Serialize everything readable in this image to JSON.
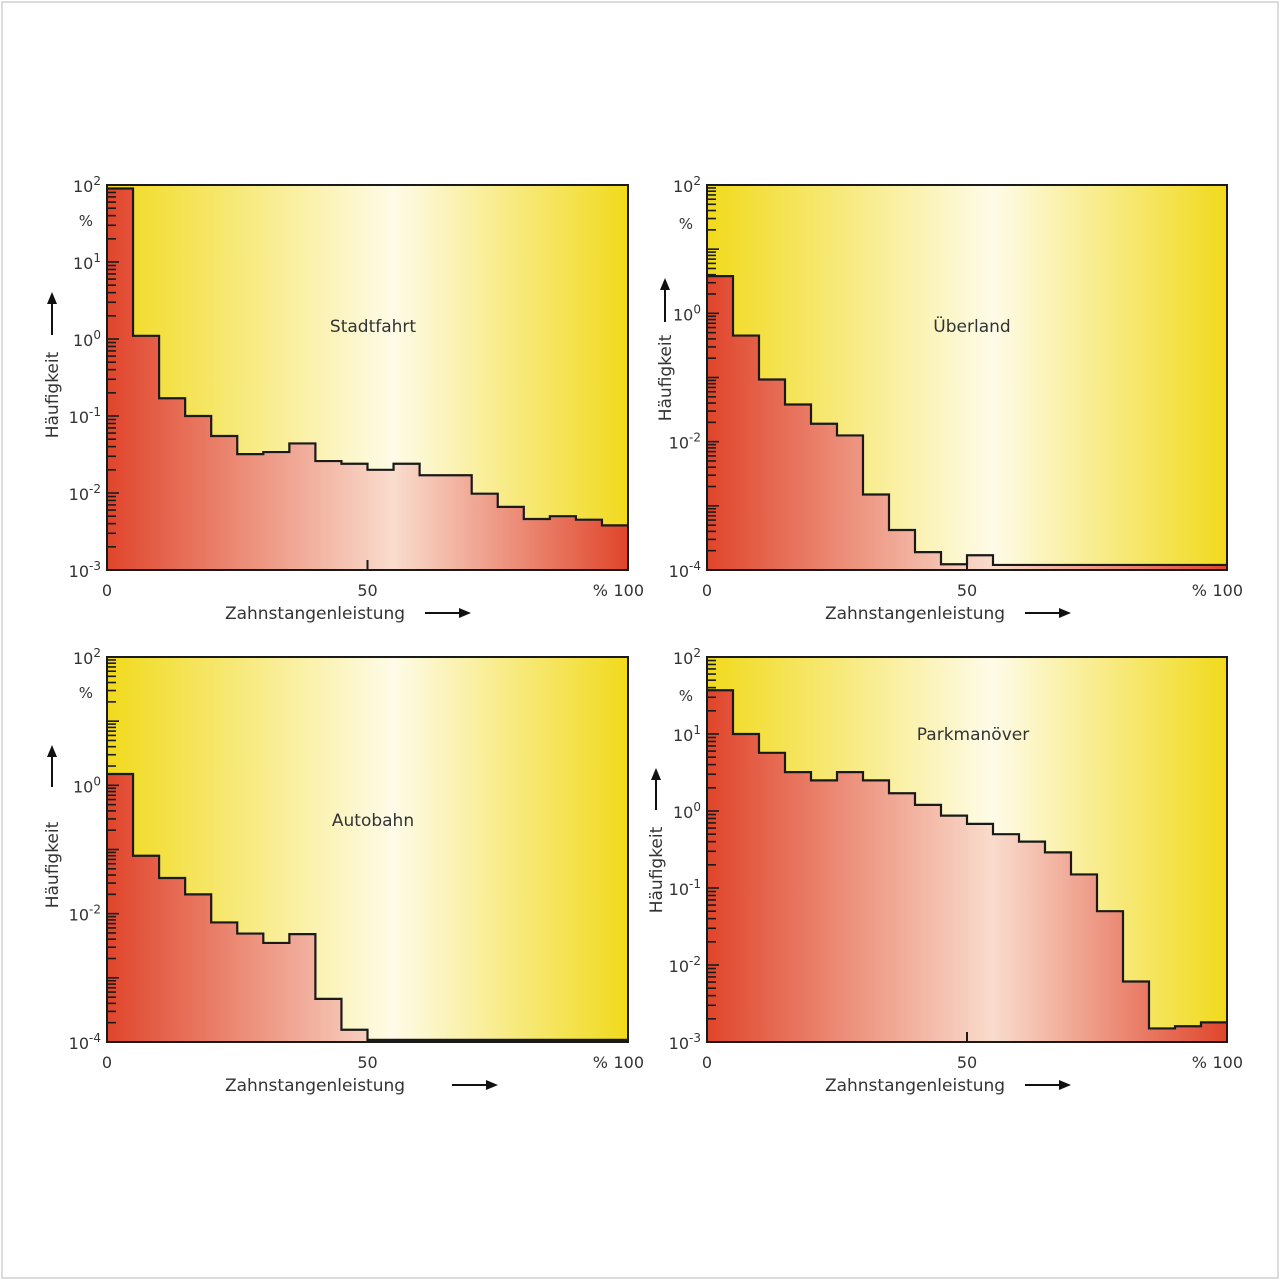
{
  "colors": {
    "bg_edge": "#f1da1c",
    "bg_center": "#fefbe8",
    "fill_edge": "#e0452b",
    "fill_center": "#f9dccd",
    "line": "#1a1a1a"
  },
  "chart_data": [
    {
      "type": "bar",
      "title": "Stadtfahrt",
      "xlabel": "Zahnstangenleistung",
      "ylabel": "Häufigkeit",
      "yunit": "%",
      "xunit": "%",
      "xticks": [
        "0",
        "50",
        "100"
      ],
      "ytick_base": "10",
      "ytick_exponents": [
        2,
        1,
        0,
        -1,
        -2,
        -3
      ],
      "yscale": "log",
      "ylim": [
        0.001,
        100
      ],
      "xlim": [
        0,
        100
      ],
      "bin_width": 5,
      "values": [
        90,
        1.1,
        0.17,
        0.1,
        0.055,
        0.032,
        0.034,
        0.044,
        0.026,
        0.024,
        0.02,
        0.024,
        0.017,
        0.017,
        0.0098,
        0.0066,
        0.0046,
        0.005,
        0.0045,
        0.0038
      ]
    },
    {
      "type": "bar",
      "title": "Überland",
      "xlabel": "Zahnstangenleistung",
      "ylabel": "Häufigkeit",
      "yunit": "%",
      "xunit": "%",
      "xticks": [
        "0",
        "50",
        "100"
      ],
      "ytick_base": "10",
      "ytick_exponents": [
        2,
        0,
        -2,
        -4
      ],
      "yscale": "log",
      "ylim": [
        0.0001,
        100
      ],
      "xlim": [
        0,
        100
      ],
      "bin_width": 5,
      "values": [
        3.8,
        0.45,
        0.093,
        0.038,
        0.019,
        0.0125,
        0.0015,
        0.00042,
        0.00019,
        0.000123,
        0.00017,
        0.00012,
        0.00012,
        0.00012,
        0.00012,
        0.00012,
        0.00012,
        0.00012,
        0.00012,
        0.00012
      ]
    },
    {
      "type": "bar",
      "title": "Autobahn",
      "xlabel": "Zahnstangenleistung",
      "ylabel": "Häufigkeit",
      "yunit": "%",
      "xunit": "%",
      "xticks": [
        "0",
        "50",
        "100"
      ],
      "ytick_base": "10",
      "ytick_exponents": [
        2,
        0,
        -2,
        -4
      ],
      "yscale": "log",
      "ylim": [
        0.0001,
        100
      ],
      "xlim": [
        0,
        100
      ],
      "bin_width": 5,
      "values": [
        1.5,
        0.08,
        0.036,
        0.02,
        0.0073,
        0.0049,
        0.0035,
        0.0048,
        0.00047,
        0.000155,
        0.000108,
        0.000108,
        0.000108,
        0.000108,
        0.000108,
        0.000108,
        0.000108,
        0.000108,
        0.000108,
        0.000108
      ]
    },
    {
      "type": "bar",
      "title": "Parkmanöver",
      "xlabel": "Zahnstangenleistung",
      "ylabel": "Häufigkeit",
      "yunit": "%",
      "xunit": "%",
      "xticks": [
        "0",
        "50",
        "100"
      ],
      "ytick_base": "10",
      "ytick_exponents": [
        2,
        1,
        0,
        -1,
        -2,
        -3
      ],
      "yscale": "log",
      "ylim": [
        0.001,
        100
      ],
      "xlim": [
        0,
        100
      ],
      "bin_width": 5,
      "values": [
        37,
        10,
        5.7,
        3.2,
        2.5,
        3.2,
        2.5,
        1.7,
        1.2,
        0.87,
        0.68,
        0.5,
        0.4,
        0.29,
        0.15,
        0.05,
        0.0061,
        0.0015,
        0.0016,
        0.0018
      ]
    }
  ]
}
